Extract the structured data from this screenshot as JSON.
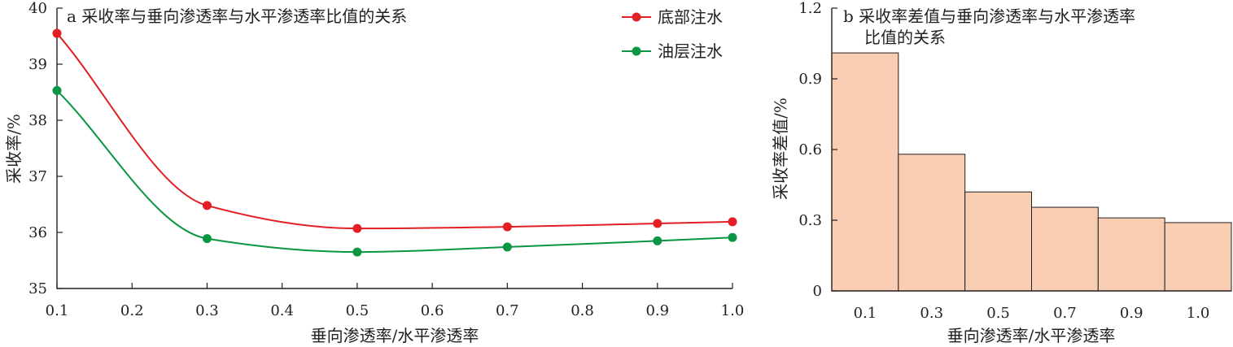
{
  "chart_data": [
    {
      "type": "line",
      "title": "a 采收率与垂向渗透率与水平渗透率比值的关系",
      "xlabel": "垂向渗透率/水平渗透率",
      "ylabel": "采收率/%",
      "xlim": [
        0.1,
        1.0
      ],
      "ylim": [
        35,
        40
      ],
      "x_ticks": [
        "0.1",
        "0.2",
        "0.3",
        "0.4",
        "0.5",
        "0.6",
        "0.7",
        "0.8",
        "0.9",
        "1.0"
      ],
      "y_ticks": [
        "35",
        "36",
        "37",
        "38",
        "39",
        "40"
      ],
      "legend_position": "top-right",
      "grid": false,
      "series": [
        {
          "name": "底部注水",
          "color": "#e31e24",
          "x": [
            0.1,
            0.3,
            0.5,
            0.7,
            0.9,
            1.0
          ],
          "y": [
            39.55,
            36.48,
            36.07,
            36.1,
            36.16,
            36.19
          ]
        },
        {
          "name": "油层注水",
          "color": "#0a9642",
          "x": [
            0.1,
            0.3,
            0.5,
            0.7,
            0.9,
            1.0
          ],
          "y": [
            38.53,
            35.89,
            35.65,
            35.74,
            35.85,
            35.91
          ]
        }
      ]
    },
    {
      "type": "bar",
      "title_lines": [
        "b 采收率差值与垂向渗透率与水平渗透率",
        "比值的关系"
      ],
      "xlabel": "垂向渗透率/水平渗透率",
      "ylabel": "采收率差值/%",
      "ylim": [
        0,
        1.2
      ],
      "y_ticks": [
        "0",
        "0.3",
        "0.6",
        "0.9",
        "1.2"
      ],
      "categories": [
        "0.1",
        "0.3",
        "0.5",
        "0.7",
        "0.9",
        "1.0"
      ],
      "values": [
        1.01,
        0.58,
        0.42,
        0.355,
        0.31,
        0.29
      ],
      "bar_color": "#f8cdb2",
      "grid": false
    }
  ]
}
